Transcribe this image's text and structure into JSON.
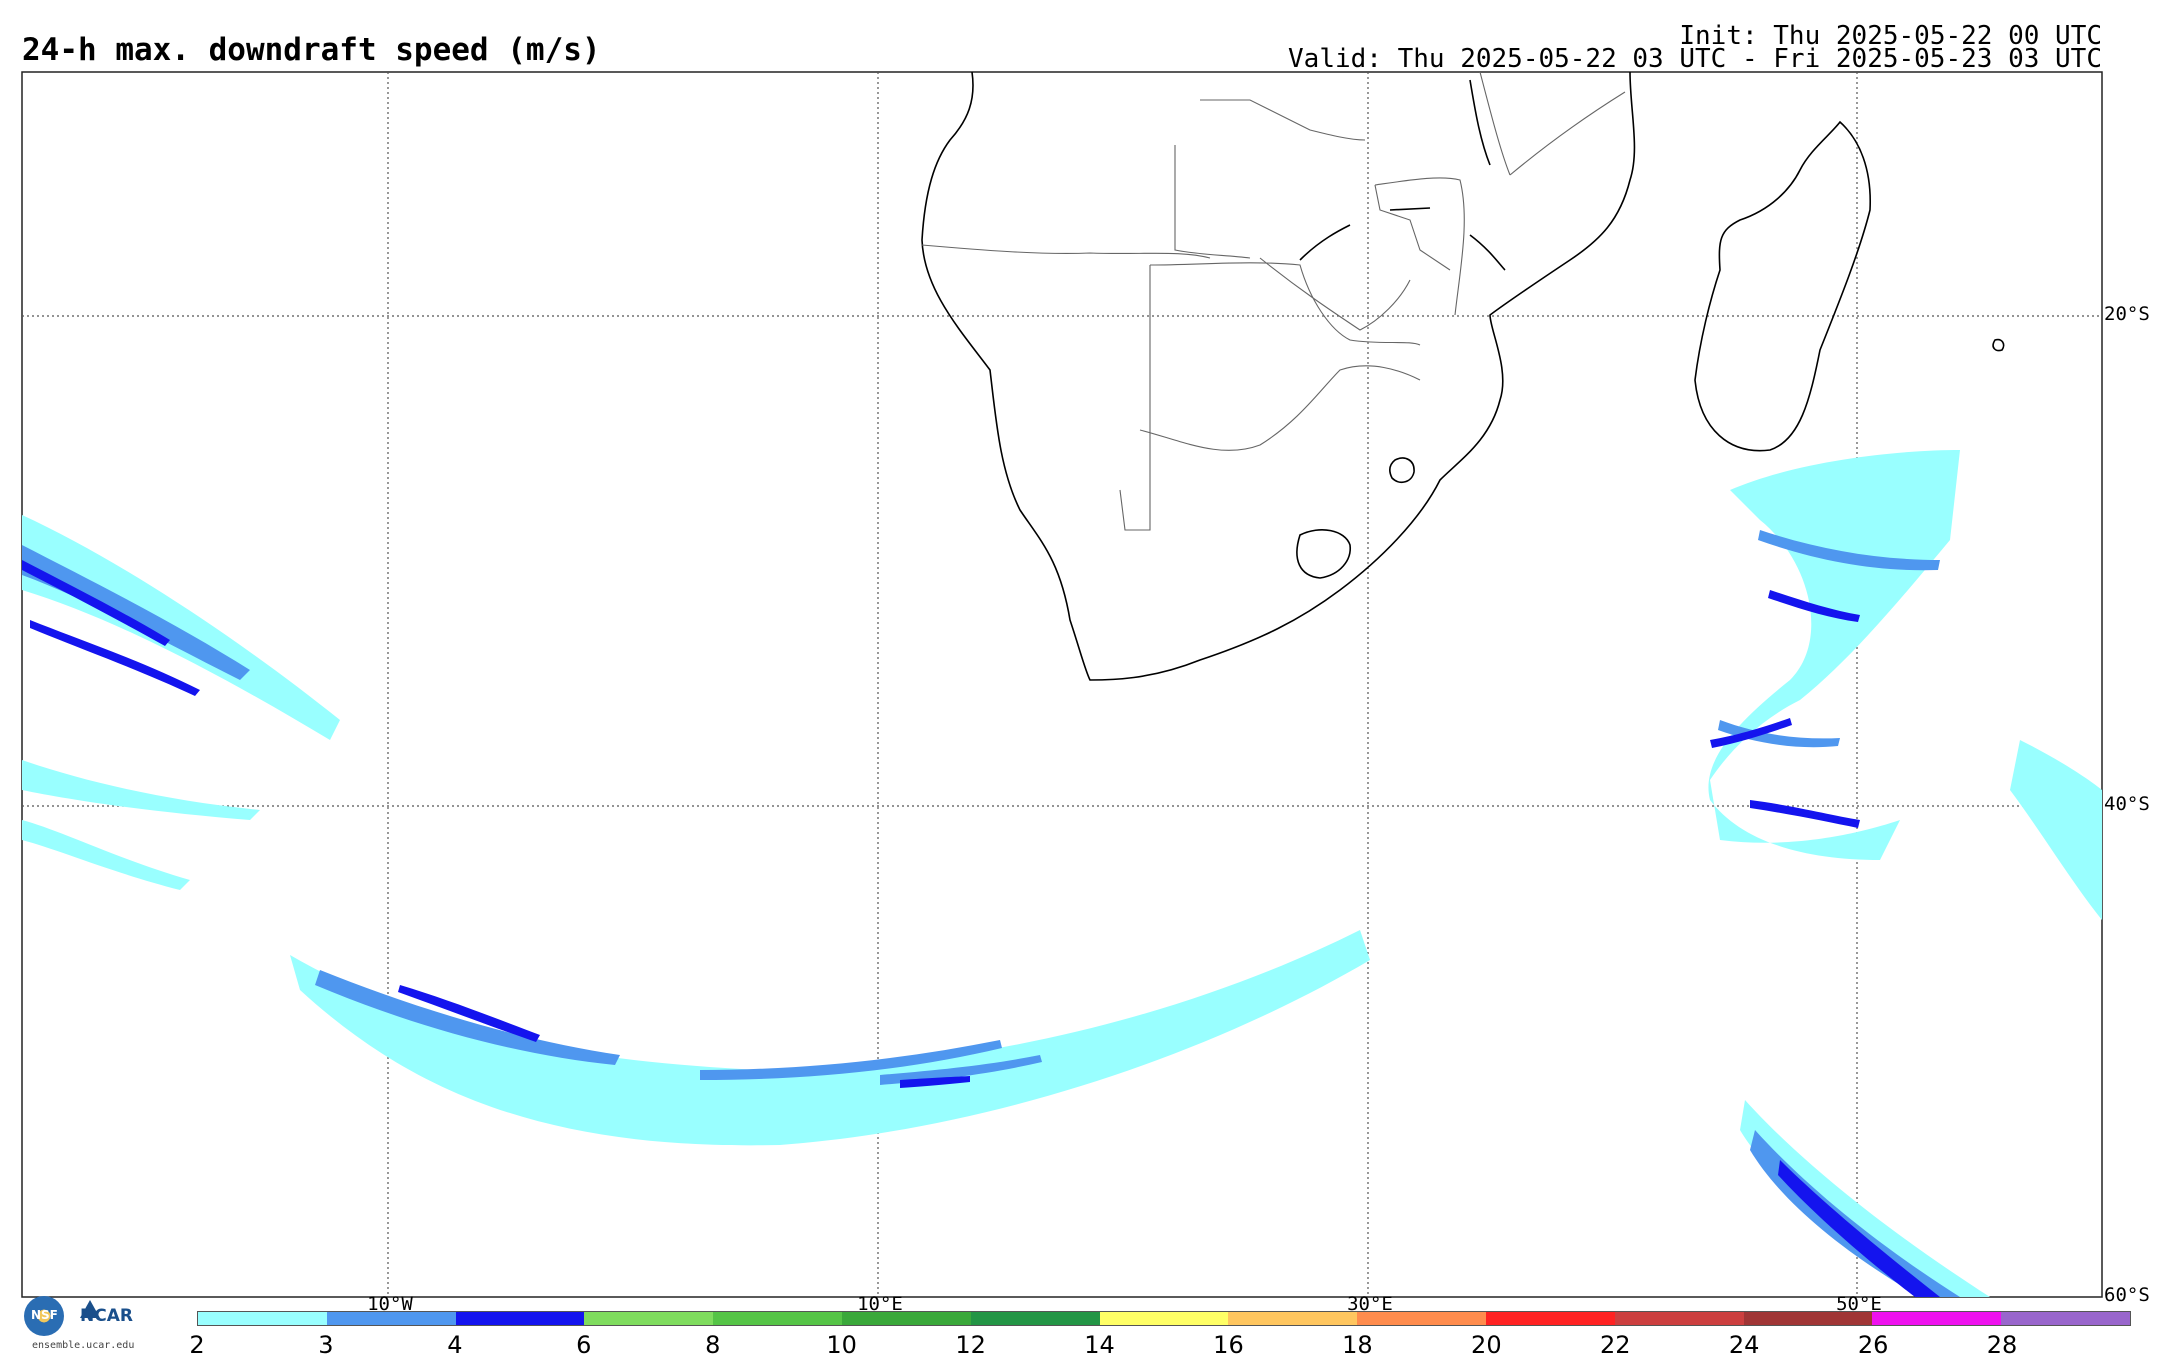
{
  "title": "24-h max. downdraft speed (m/s)",
  "init": "Init: Thu 2025-05-22 00 UTC",
  "valid": "Valid: Thu 2025-05-22 03 UTC - Fri 2025-05-23 03 UTC",
  "lat_labels": [
    "20°S",
    "40°S",
    "60°S"
  ],
  "lon_labels": [
    "10°W",
    "10°E",
    "30°E",
    "50°E"
  ],
  "colorbar": {
    "levels": [
      "2",
      "3",
      "4",
      "6",
      "8",
      "10",
      "12",
      "14",
      "16",
      "18",
      "20",
      "22",
      "24",
      "26",
      "28"
    ],
    "colors": [
      "#99ffff",
      "#4f97ef",
      "#1414ee",
      "#7fdc5e",
      "#55c446",
      "#3aa83a",
      "#239545",
      "#ffff66",
      "#ffc65f",
      "#ff8c4d",
      "#ff2222",
      "#cc3f3f",
      "#a03535",
      "#ee11ee",
      "#9966cc"
    ]
  },
  "logo": {
    "nsf": "NSF",
    "ncar": "NCAR",
    "url": "ensemble.ucar.edu"
  },
  "colors": {
    "light": "#99ffff",
    "mid": "#4f97ef",
    "dark": "#1414ee",
    "land_outline": "#000000",
    "grid": "#555555"
  }
}
